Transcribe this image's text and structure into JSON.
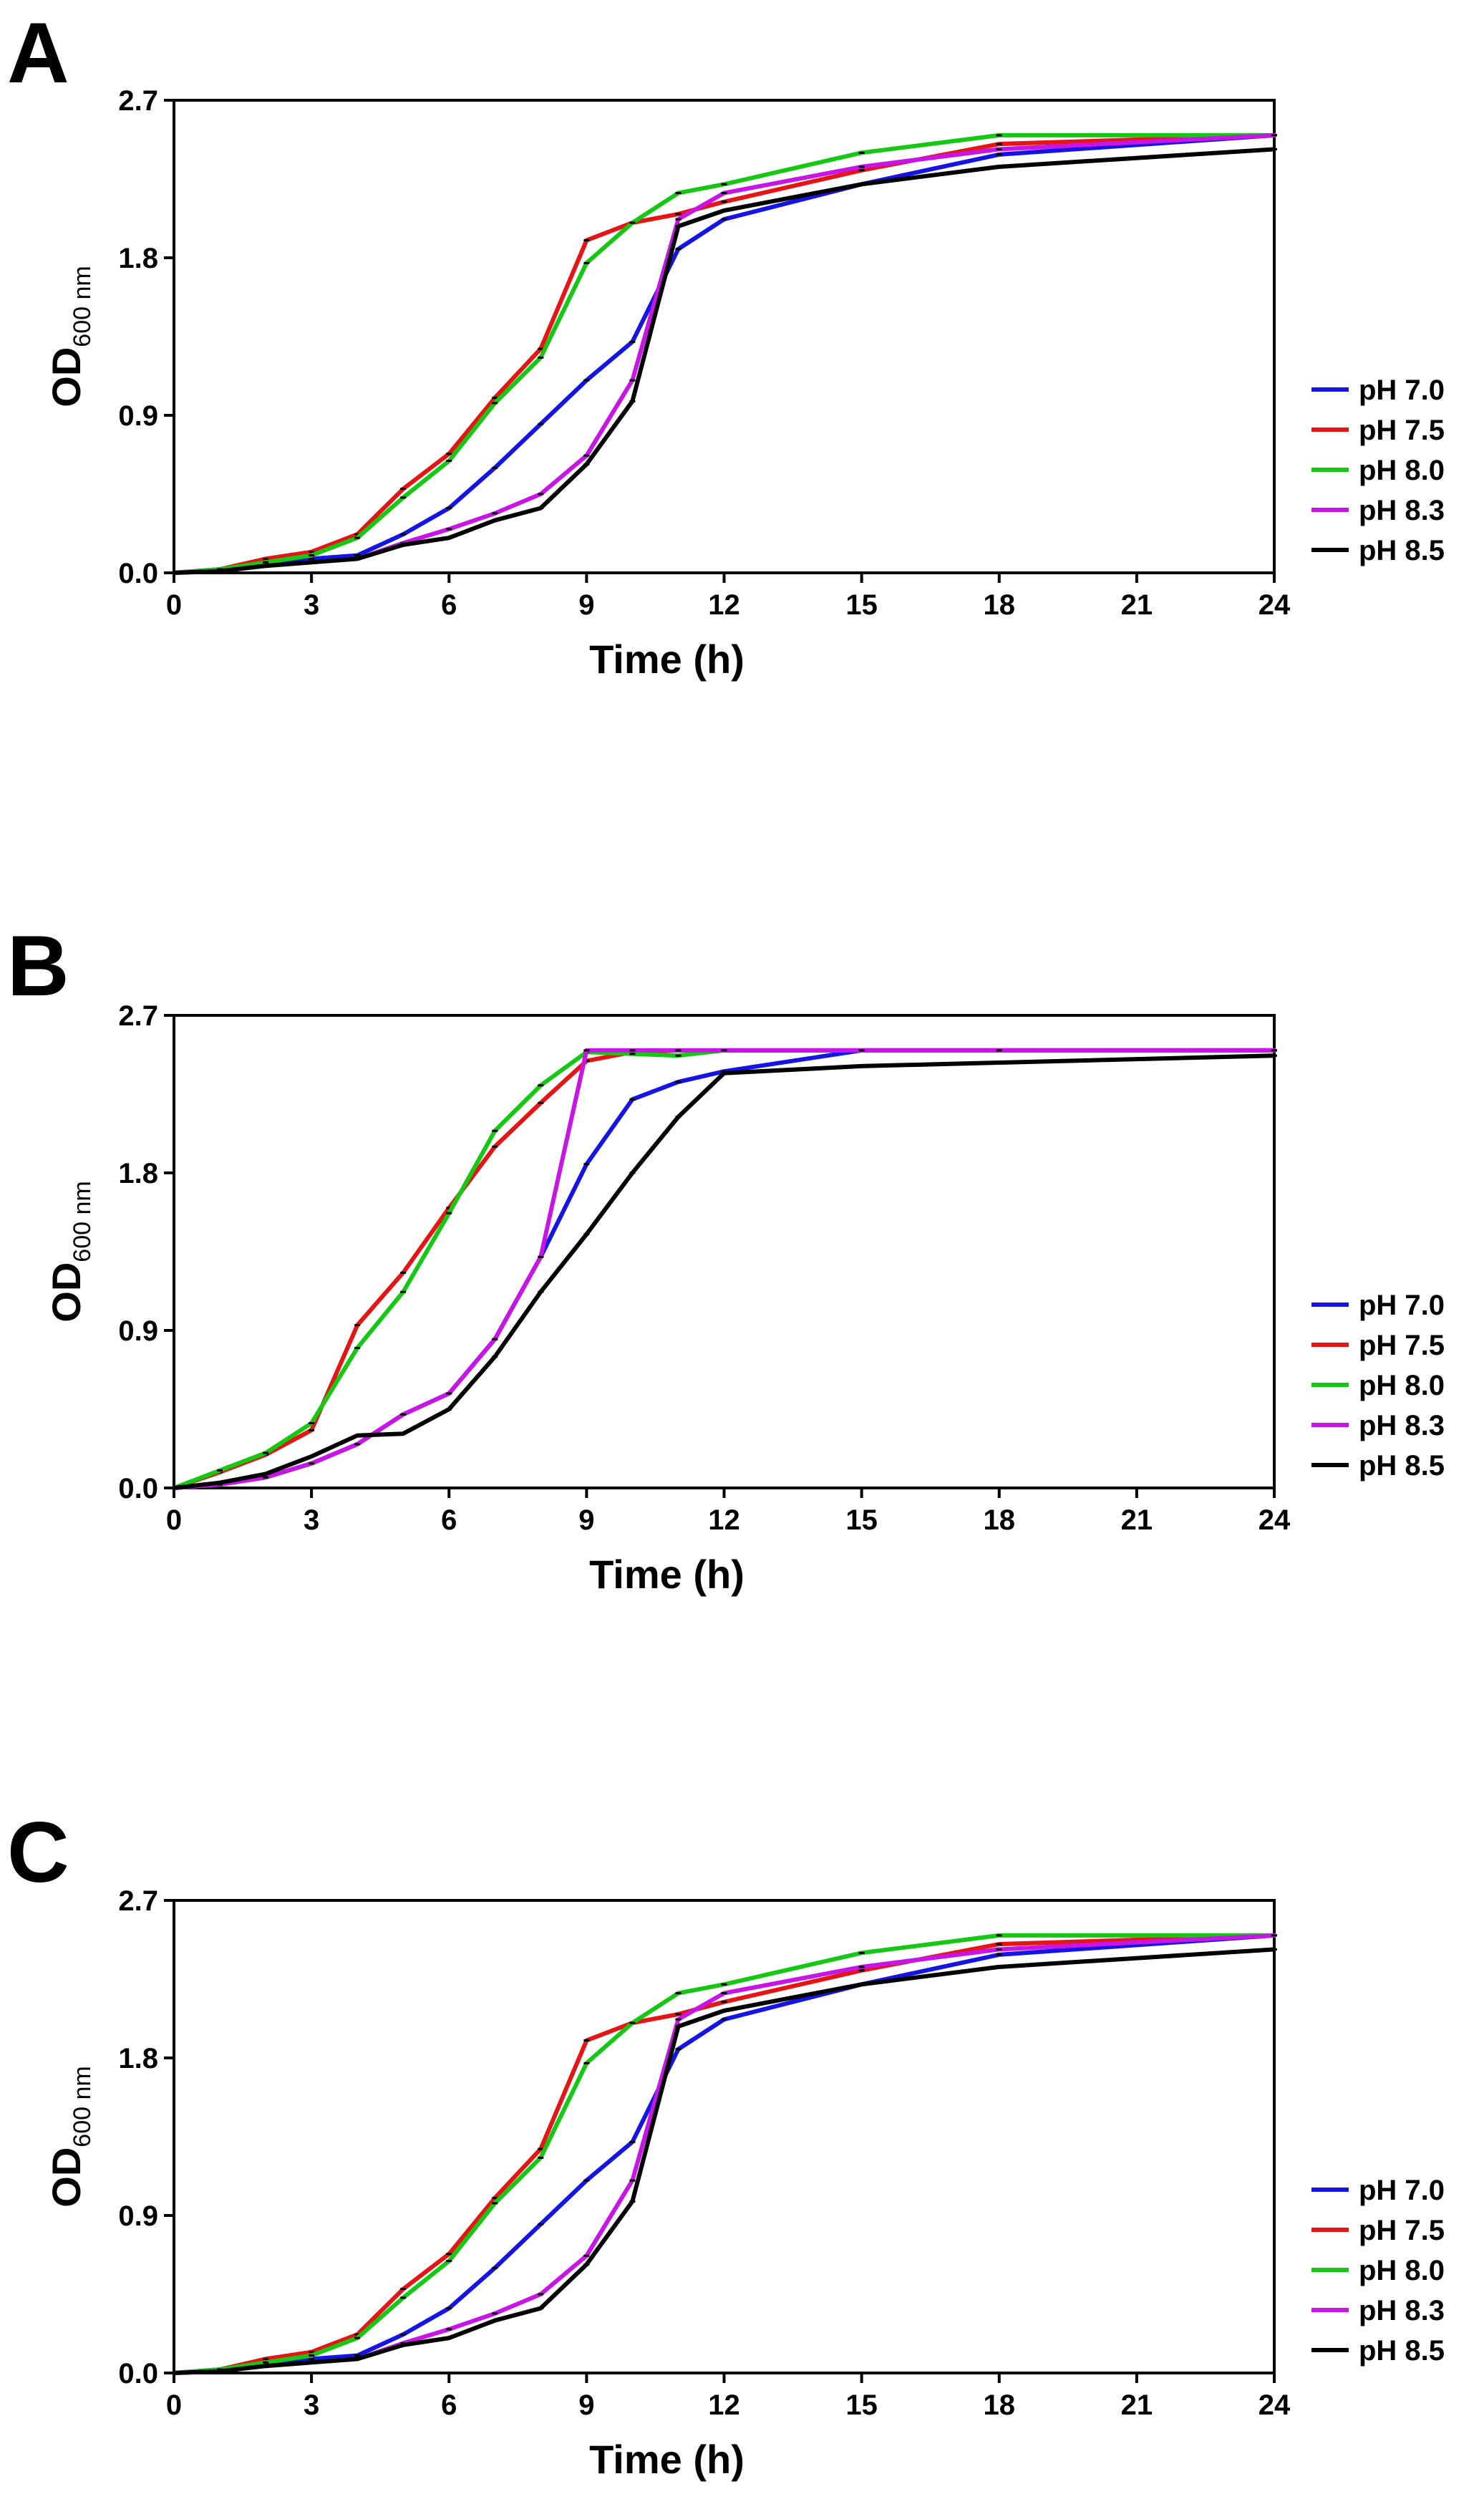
{
  "chart_data": [
    {
      "panel": "A",
      "type": "line",
      "xlabel": "Time (h)",
      "ylabel": "OD",
      "ylabel_sub": "600 nm",
      "xlim": [
        0,
        24
      ],
      "ylim": [
        0,
        2.7
      ],
      "xticks": [
        "0",
        "3",
        "6",
        "9",
        "12",
        "15",
        "18",
        "21",
        "24"
      ],
      "yticks": [
        "0.0",
        "0.9",
        "1.8",
        "2.7"
      ],
      "grid": false,
      "legend": "right",
      "series": [
        {
          "name": "pH 7.0",
          "color": "#1414e6",
          "x": [
            0,
            1,
            2,
            3,
            4,
            5,
            6,
            7,
            8,
            9,
            10,
            11,
            12,
            15,
            18,
            24
          ],
          "y": [
            0,
            0.02,
            0.05,
            0.08,
            0.1,
            0.22,
            0.37,
            0.6,
            0.85,
            1.1,
            1.32,
            1.85,
            2.02,
            2.22,
            2.39,
            2.5
          ]
        },
        {
          "name": "pH 7.5",
          "color": "#e61414",
          "x": [
            0,
            1,
            2,
            3,
            4,
            5,
            6,
            7,
            8,
            9,
            10,
            11,
            12,
            15,
            18,
            24
          ],
          "y": [
            0,
            0.02,
            0.08,
            0.12,
            0.22,
            0.48,
            0.68,
            1.0,
            1.28,
            1.9,
            2.0,
            2.05,
            2.12,
            2.3,
            2.45,
            2.5
          ]
        },
        {
          "name": "pH 8.0",
          "color": "#14c814",
          "x": [
            0,
            1,
            2,
            3,
            4,
            5,
            6,
            7,
            8,
            9,
            10,
            11,
            12,
            15,
            18,
            24
          ],
          "y": [
            0,
            0.02,
            0.06,
            0.1,
            0.2,
            0.43,
            0.64,
            0.97,
            1.23,
            1.77,
            2.0,
            2.17,
            2.22,
            2.4,
            2.5,
            2.5
          ]
        },
        {
          "name": "pH 8.3",
          "color": "#c814e6",
          "x": [
            0,
            1,
            2,
            3,
            4,
            5,
            6,
            7,
            8,
            9,
            10,
            11,
            12,
            15,
            18,
            24
          ],
          "y": [
            0,
            0.01,
            0.04,
            0.06,
            0.08,
            0.17,
            0.25,
            0.34,
            0.45,
            0.67,
            1.1,
            2.02,
            2.17,
            2.32,
            2.42,
            2.5
          ]
        },
        {
          "name": "pH 8.5",
          "color": "#000000",
          "x": [
            0,
            1,
            2,
            3,
            4,
            5,
            6,
            7,
            8,
            9,
            10,
            11,
            12,
            15,
            18,
            24
          ],
          "y": [
            0,
            0.01,
            0.04,
            0.06,
            0.08,
            0.16,
            0.2,
            0.3,
            0.37,
            0.62,
            0.98,
            1.98,
            2.07,
            2.22,
            2.32,
            2.42
          ]
        }
      ]
    },
    {
      "panel": "B",
      "type": "line",
      "xlabel": "Time (h)",
      "ylabel": "OD",
      "ylabel_sub": "600 nm",
      "xlim": [
        0,
        24
      ],
      "ylim": [
        0,
        2.7
      ],
      "xticks": [
        "0",
        "3",
        "6",
        "9",
        "12",
        "15",
        "18",
        "21",
        "24"
      ],
      "yticks": [
        "0.0",
        "0.9",
        "1.8",
        "2.7"
      ],
      "grid": false,
      "legend": "right",
      "series": [
        {
          "name": "pH 7.0",
          "color": "#1414e6",
          "x": [
            0,
            1,
            2,
            3,
            4,
            5,
            6,
            7,
            8,
            9,
            10,
            11,
            12,
            15,
            18,
            24
          ],
          "y": [
            0,
            0.02,
            0.06,
            0.14,
            0.25,
            0.42,
            0.54,
            0.85,
            1.32,
            1.85,
            2.22,
            2.32,
            2.38,
            2.5,
            2.5,
            2.5
          ]
        },
        {
          "name": "pH 7.5",
          "color": "#e61414",
          "x": [
            0,
            1,
            2,
            3,
            4,
            5,
            6,
            7,
            8,
            9,
            10,
            11,
            12,
            15,
            18,
            24
          ],
          "y": [
            0,
            0.09,
            0.19,
            0.33,
            0.93,
            1.23,
            1.6,
            1.95,
            2.2,
            2.44,
            2.49,
            2.5,
            2.5,
            2.5,
            2.5,
            2.5
          ]
        },
        {
          "name": "pH 8.0",
          "color": "#14c814",
          "x": [
            0,
            1,
            2,
            3,
            4,
            5,
            6,
            7,
            8,
            9,
            10,
            11,
            12,
            15,
            18,
            24
          ],
          "y": [
            0,
            0.1,
            0.2,
            0.37,
            0.8,
            1.12,
            1.57,
            2.04,
            2.3,
            2.49,
            2.48,
            2.47,
            2.5,
            2.5,
            2.5,
            2.5
          ]
        },
        {
          "name": "pH 8.3",
          "color": "#c814e6",
          "x": [
            0,
            1,
            2,
            3,
            4,
            5,
            6,
            7,
            8,
            9,
            10,
            11,
            12,
            15,
            18,
            24
          ],
          "y": [
            0,
            0.02,
            0.06,
            0.14,
            0.25,
            0.42,
            0.54,
            0.85,
            1.32,
            2.5,
            2.5,
            2.5,
            2.5,
            2.5,
            2.5,
            2.5
          ]
        },
        {
          "name": "pH 8.5",
          "color": "#000000",
          "x": [
            0,
            1,
            2,
            3,
            4,
            5,
            6,
            7,
            8,
            9,
            10,
            11,
            12,
            15,
            18,
            24
          ],
          "y": [
            0,
            0.03,
            0.08,
            0.18,
            0.3,
            0.31,
            0.45,
            0.75,
            1.12,
            1.45,
            1.8,
            2.12,
            2.37,
            2.41,
            2.43,
            2.47
          ]
        }
      ]
    },
    {
      "panel": "C",
      "type": "line",
      "xlabel": "Time (h)",
      "ylabel": "OD",
      "ylabel_sub": "600 nm",
      "xlim": [
        0,
        24
      ],
      "ylim": [
        0,
        2.7
      ],
      "xticks": [
        "0",
        "3",
        "6",
        "9",
        "12",
        "15",
        "18",
        "21",
        "24"
      ],
      "yticks": [
        "0.0",
        "0.9",
        "1.8",
        "2.7"
      ],
      "grid": false,
      "legend": "right",
      "series": [
        {
          "name": "pH 7.0",
          "color": "#1414e6",
          "x": [
            0,
            1,
            2,
            3,
            4,
            5,
            6,
            7,
            8,
            9,
            10,
            11,
            12,
            15,
            18,
            24
          ],
          "y": [
            0,
            0.02,
            0.05,
            0.08,
            0.1,
            0.22,
            0.37,
            0.6,
            0.85,
            1.1,
            1.32,
            1.85,
            2.02,
            2.22,
            2.39,
            2.5
          ]
        },
        {
          "name": "pH 7.5",
          "color": "#e61414",
          "x": [
            0,
            1,
            2,
            3,
            4,
            5,
            6,
            7,
            8,
            9,
            10,
            11,
            12,
            15,
            18,
            24
          ],
          "y": [
            0,
            0.02,
            0.08,
            0.12,
            0.22,
            0.48,
            0.68,
            1.0,
            1.28,
            1.9,
            2.0,
            2.05,
            2.12,
            2.3,
            2.45,
            2.5
          ]
        },
        {
          "name": "pH 8.0",
          "color": "#14c814",
          "x": [
            0,
            1,
            2,
            3,
            4,
            5,
            6,
            7,
            8,
            9,
            10,
            11,
            12,
            15,
            18,
            24
          ],
          "y": [
            0,
            0.02,
            0.06,
            0.1,
            0.2,
            0.43,
            0.64,
            0.97,
            1.23,
            1.77,
            2.0,
            2.17,
            2.22,
            2.4,
            2.5,
            2.5
          ]
        },
        {
          "name": "pH 8.3",
          "color": "#c814e6",
          "x": [
            0,
            1,
            2,
            3,
            4,
            5,
            6,
            7,
            8,
            9,
            10,
            11,
            12,
            15,
            18,
            24
          ],
          "y": [
            0,
            0.01,
            0.04,
            0.06,
            0.08,
            0.17,
            0.25,
            0.34,
            0.45,
            0.67,
            1.1,
            2.02,
            2.17,
            2.32,
            2.42,
            2.5
          ]
        },
        {
          "name": "pH 8.5",
          "color": "#000000",
          "x": [
            0,
            1,
            2,
            3,
            4,
            5,
            6,
            7,
            8,
            9,
            10,
            11,
            12,
            15,
            18,
            24
          ],
          "y": [
            0,
            0.01,
            0.04,
            0.06,
            0.08,
            0.16,
            0.2,
            0.3,
            0.37,
            0.62,
            0.98,
            1.98,
            2.07,
            2.22,
            2.32,
            2.42
          ]
        }
      ]
    }
  ]
}
